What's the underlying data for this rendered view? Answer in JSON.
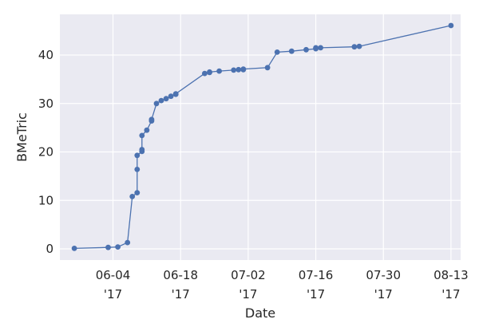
{
  "chart_data": {
    "type": "line",
    "title": "",
    "xlabel": "Date",
    "ylabel": "BMeTric",
    "x_axis": {
      "type": "date",
      "range": [
        "2017-05-24",
        "2017-08-15"
      ],
      "ticks": [
        {
          "value": "2017-06-04",
          "label_line1": "06-04",
          "label_line2": "'17"
        },
        {
          "value": "2017-06-18",
          "label_line1": "06-18",
          "label_line2": "'17"
        },
        {
          "value": "2017-07-02",
          "label_line1": "07-02",
          "label_line2": "'17"
        },
        {
          "value": "2017-07-16",
          "label_line1": "07-16",
          "label_line2": "'17"
        },
        {
          "value": "2017-07-30",
          "label_line1": "07-30",
          "label_line2": "'17"
        },
        {
          "value": "2017-08-13",
          "label_line1": "08-13",
          "label_line2": "'17"
        }
      ]
    },
    "y_axis": {
      "range": [
        -2.3,
        48.4
      ],
      "ticks": [
        {
          "value": 0,
          "label": "0"
        },
        {
          "value": 10,
          "label": "10"
        },
        {
          "value": 20,
          "label": "20"
        },
        {
          "value": 30,
          "label": "30"
        },
        {
          "value": 40,
          "label": "40"
        }
      ]
    },
    "grid": true,
    "legend": "none",
    "colors": {
      "background": "#eaeaf2",
      "grid": "#ffffff",
      "series": "#4c72b0",
      "text": "#262626"
    },
    "series": [
      {
        "name": "",
        "marker": "circle",
        "points": [
          {
            "x": "2017-05-27",
            "y": 0.1
          },
          {
            "x": "2017-06-03",
            "y": 0.3
          },
          {
            "x": "2017-06-05",
            "y": 0.4
          },
          {
            "x": "2017-06-07",
            "y": 1.3
          },
          {
            "x": "2017-06-08",
            "y": 10.8
          },
          {
            "x": "2017-06-09",
            "y": 11.6
          },
          {
            "x": "2017-06-09",
            "y": 16.4
          },
          {
            "x": "2017-06-09",
            "y": 19.3
          },
          {
            "x": "2017-06-10",
            "y": 20.1
          },
          {
            "x": "2017-06-10",
            "y": 20.5
          },
          {
            "x": "2017-06-10",
            "y": 23.4
          },
          {
            "x": "2017-06-11",
            "y": 24.5
          },
          {
            "x": "2017-06-12",
            "y": 26.4
          },
          {
            "x": "2017-06-12",
            "y": 26.7
          },
          {
            "x": "2017-06-13",
            "y": 30.0
          },
          {
            "x": "2017-06-14",
            "y": 30.6
          },
          {
            "x": "2017-06-15",
            "y": 31.0
          },
          {
            "x": "2017-06-16",
            "y": 31.5
          },
          {
            "x": "2017-06-17",
            "y": 31.9
          },
          {
            "x": "2017-06-17",
            "y": 32.0
          },
          {
            "x": "2017-06-23",
            "y": 36.2
          },
          {
            "x": "2017-06-24",
            "y": 36.4
          },
          {
            "x": "2017-06-24",
            "y": 36.5
          },
          {
            "x": "2017-06-26",
            "y": 36.7
          },
          {
            "x": "2017-06-29",
            "y": 36.9
          },
          {
            "x": "2017-06-30",
            "y": 37.0
          },
          {
            "x": "2017-07-01",
            "y": 37.0
          },
          {
            "x": "2017-07-01",
            "y": 37.1
          },
          {
            "x": "2017-07-06",
            "y": 37.4
          },
          {
            "x": "2017-07-08",
            "y": 40.6
          },
          {
            "x": "2017-07-11",
            "y": 40.8
          },
          {
            "x": "2017-07-14",
            "y": 41.1
          },
          {
            "x": "2017-07-16",
            "y": 41.3
          },
          {
            "x": "2017-07-16",
            "y": 41.5
          },
          {
            "x": "2017-07-17",
            "y": 41.5
          },
          {
            "x": "2017-07-24",
            "y": 41.7
          },
          {
            "x": "2017-07-25",
            "y": 41.8
          },
          {
            "x": "2017-08-13",
            "y": 46.1
          }
        ]
      }
    ]
  }
}
